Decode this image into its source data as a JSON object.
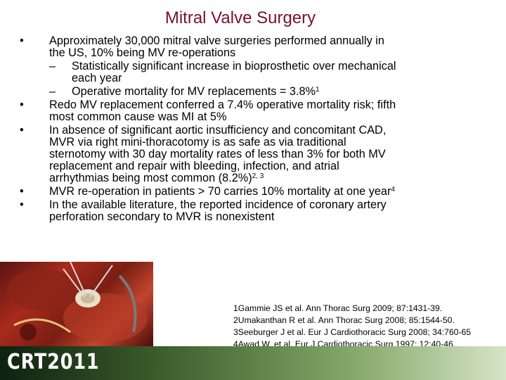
{
  "title": "Mitral Valve Surgery",
  "bullets": [
    {
      "lines": [
        "Approximately 30,000 mitral valve surgeries performed annually in",
        "the US, 10% being MV re-operations"
      ]
    },
    {
      "sub": true,
      "lines": [
        "Statistically significant increase in bioprosthetic over mechanical",
        "each year"
      ]
    },
    {
      "sub": true,
      "lines": [
        "Operative mortality for MV replacements = 3.8%"
      ],
      "sup": "1"
    },
    {
      "lines": [
        "Redo MV replacement conferred a 7.4% operative mortality risk; fifth",
        "most common cause was MI at 5%"
      ]
    },
    {
      "lines": [
        "In absence of significant aortic insufficiency and concomitant CAD,",
        "MVR via right mini-thoracotomy is as safe as via traditional",
        "sternotomy with 30 day mortality rates of less than 3% for both MV",
        "replacement and repair with bleeding, infection, and atrial",
        "arrhythmias being most common (8.2%)"
      ],
      "sup": "2, 3"
    },
    {
      "lines": [
        "MVR re-operation in patients > 70 carries 10% mortality at one year"
      ],
      "sup": "4"
    },
    {
      "lines": [
        "In the available literature, the reported incidence of coronary artery",
        "perforation secondary to MVR is nonexistent"
      ]
    }
  ],
  "bullet_symbol": "•",
  "sub_symbol": "–",
  "references": [
    "1Gammie JS et al. Ann Thorac Surg 2009; 87:1431-39.",
    "2Umakanthan R et al. Ann Thorac Surg 2008; 85:1544-50.",
    "3Seeburger J et al. Eur J Cardiothoracic Surg 2008; 34:760-65",
    "4Awad W, et al. Eur J Cardiothoracic Surg 1997; 12:40-46."
  ],
  "logo_text": "CRT2011",
  "colors": {
    "title": "#7a1030",
    "footer_dark": "#0e2210",
    "footer_light": "#d6e4c6"
  }
}
